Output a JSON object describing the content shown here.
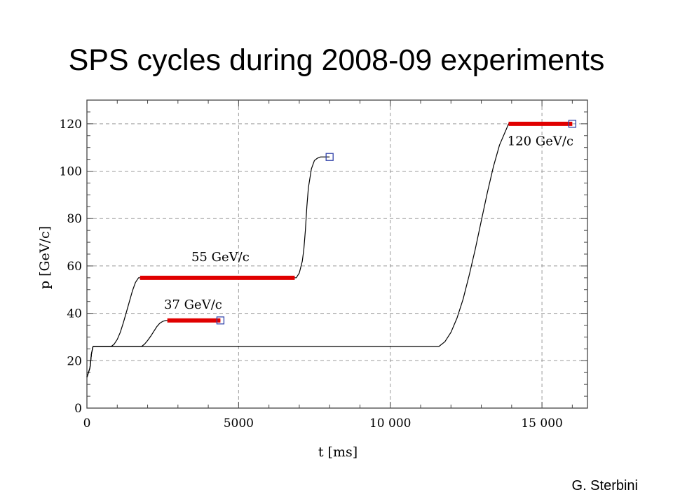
{
  "slide": {
    "title": "SPS cycles during 2008-09 experiments",
    "credit": "G. Sterbini"
  },
  "chart_data": {
    "type": "line",
    "xlabel": "t [ms]",
    "ylabel": "p [GeV/c]",
    "xlim": [
      0,
      16500
    ],
    "ylim": [
      0,
      130
    ],
    "xticks": [
      0,
      5000,
      10000,
      15000
    ],
    "xtick_labels": [
      "0",
      "5000",
      "10 000",
      "15 000"
    ],
    "yticks": [
      0,
      20,
      40,
      60,
      80,
      100,
      120
    ],
    "ytick_labels": [
      "0",
      "20",
      "40",
      "60",
      "80",
      "100",
      "120"
    ],
    "grid": true,
    "colors": {
      "curve": "#000000",
      "flattop": "#e00000",
      "marker": "#3344aa",
      "grid": "#9a9a9a"
    },
    "series": [
      {
        "label": "37 GeV/c",
        "x": [
          0,
          100,
          150,
          200,
          600,
          1800,
          1900,
          2000,
          2100,
          2200,
          2300,
          2400,
          2500,
          2600,
          2650,
          4400
        ],
        "y": [
          13,
          17,
          23,
          26,
          26,
          26,
          27,
          28.5,
          30.3,
          32.3,
          34.3,
          35.8,
          36.6,
          37,
          37,
          37
        ],
        "flattop": [
          2650,
          4400,
          37
        ],
        "marker": [
          4400,
          37
        ]
      },
      {
        "label": "55 GeV/c",
        "x": [
          0,
          100,
          150,
          200,
          800,
          900,
          1000,
          1100,
          1200,
          1300,
          1400,
          1500,
          1600,
          1700,
          1750,
          6900,
          7000,
          7100,
          7150,
          7200,
          7250,
          7300,
          7400,
          7500,
          7600,
          7700,
          8000
        ],
        "y": [
          13,
          17,
          23,
          26,
          26,
          27,
          29,
          32,
          36,
          40.5,
          45,
          49.5,
          53,
          55,
          55,
          55,
          57,
          62,
          67,
          75,
          85,
          93,
          101,
          104.5,
          105.5,
          106,
          106
        ],
        "flattop": [
          1750,
          6850,
          55
        ],
        "marker": [
          8000,
          106
        ]
      },
      {
        "label": "120 GeV/c",
        "x": [
          0,
          100,
          150,
          200,
          11600,
          11800,
          12000,
          12200,
          12400,
          12600,
          12800,
          13000,
          13200,
          13400,
          13600,
          13800,
          13900,
          16000
        ],
        "y": [
          13,
          17,
          23,
          26,
          26,
          28,
          32,
          38,
          46,
          56,
          67,
          79,
          91,
          102,
          111,
          117,
          120,
          120
        ],
        "flattop": [
          13900,
          16000,
          120
        ],
        "marker": [
          16000,
          120
        ]
      }
    ],
    "annotations": [
      {
        "text": "55 GeV/c",
        "x": 4400,
        "y": 62
      },
      {
        "text": "37 GeV/c",
        "x": 3500,
        "y": 42
      },
      {
        "text": "120 GeV/c",
        "x": 14950,
        "y": 111
      }
    ]
  }
}
